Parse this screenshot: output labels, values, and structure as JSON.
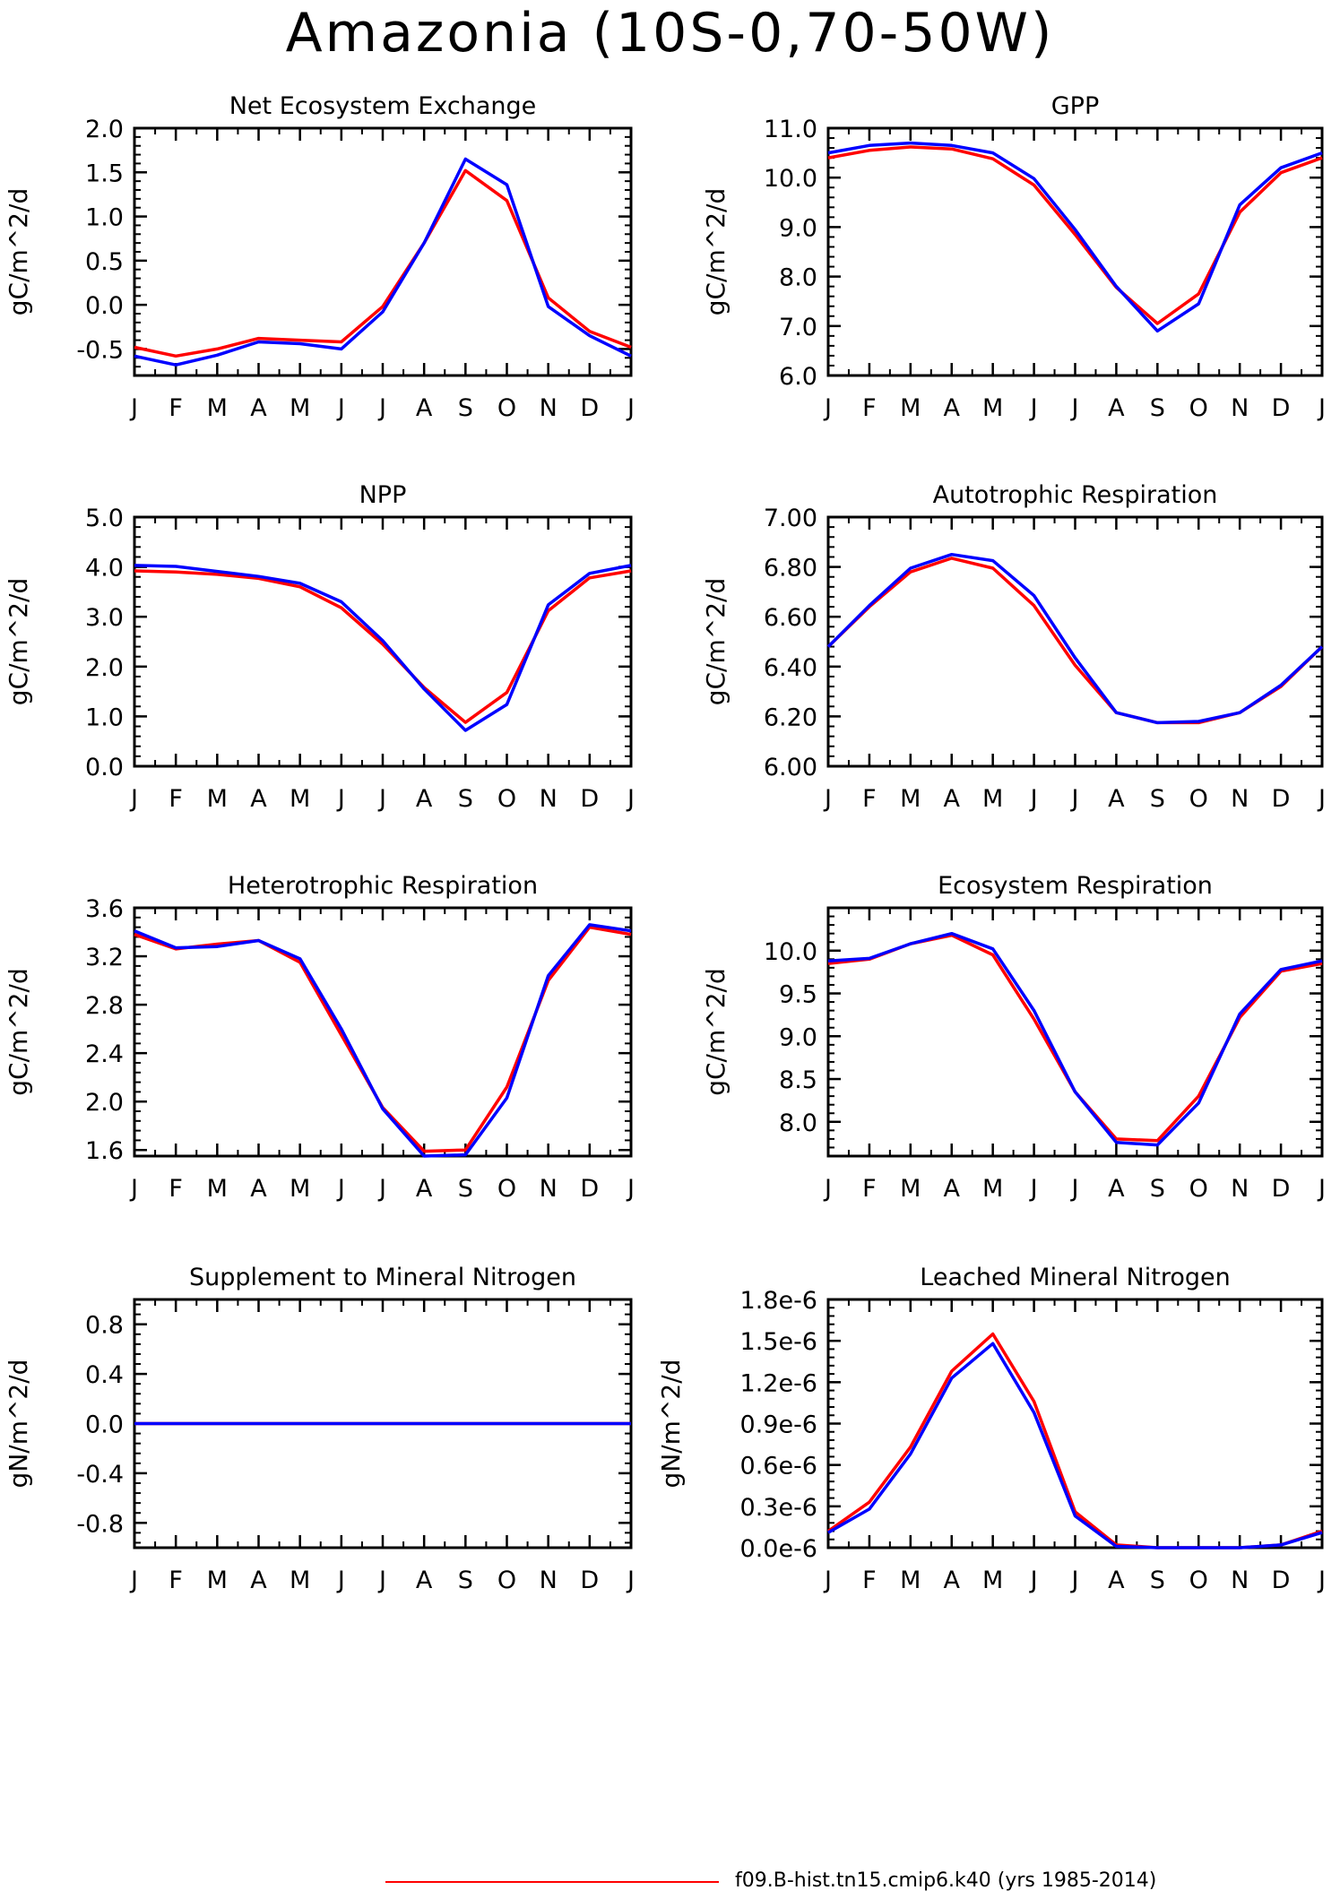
{
  "title": "Amazonia (10S-0,70-50W)",
  "legend": [
    {
      "label": "f09.B-hist.tn15.cmip6.k40 (yrs 1985-2014)",
      "color": "#ff0000"
    }
  ],
  "series_colors": [
    "#ff0000",
    "#0000ff"
  ],
  "chart_data": [
    {
      "type": "line",
      "title": "Net Ecosystem Exchange",
      "ylabel": "gC/m^2/d",
      "categories": [
        "J",
        "F",
        "M",
        "A",
        "M",
        "J",
        "J",
        "A",
        "S",
        "O",
        "N",
        "D",
        "J"
      ],
      "ylim": [
        -0.8,
        2.0
      ],
      "yticks": [
        -0.5,
        0.0,
        0.5,
        1.0,
        1.5,
        2.0
      ],
      "ytick_labels": [
        "-0.5",
        "0.0",
        "0.5",
        "1.0",
        "1.5",
        "2.0"
      ],
      "series": [
        {
          "values": [
            -0.48,
            -0.58,
            -0.5,
            -0.38,
            -0.4,
            -0.42,
            -0.02,
            0.7,
            1.52,
            1.18,
            0.08,
            -0.3,
            -0.48
          ]
        },
        {
          "values": [
            -0.58,
            -0.68,
            -0.57,
            -0.42,
            -0.44,
            -0.5,
            -0.08,
            0.7,
            1.65,
            1.36,
            -0.02,
            -0.35,
            -0.58
          ]
        }
      ]
    },
    {
      "type": "line",
      "title": "GPP",
      "ylabel": "gC/m^2/d",
      "categories": [
        "J",
        "F",
        "M",
        "A",
        "M",
        "J",
        "J",
        "A",
        "S",
        "O",
        "N",
        "D",
        "J"
      ],
      "ylim": [
        6.0,
        11.0
      ],
      "yticks": [
        6.0,
        7.0,
        8.0,
        9.0,
        10.0,
        11.0
      ],
      "ytick_labels": [
        "6.0",
        "7.0",
        "8.0",
        "9.0",
        "10.0",
        "11.0"
      ],
      "series": [
        {
          "values": [
            10.4,
            10.55,
            10.62,
            10.58,
            10.38,
            9.85,
            8.85,
            7.78,
            7.05,
            7.65,
            9.3,
            10.1,
            10.4
          ]
        },
        {
          "values": [
            10.5,
            10.65,
            10.7,
            10.65,
            10.5,
            9.98,
            8.95,
            7.8,
            6.9,
            7.45,
            9.45,
            10.2,
            10.5
          ]
        }
      ]
    },
    {
      "type": "line",
      "title": "NPP",
      "ylabel": "gC/m^2/d",
      "categories": [
        "J",
        "F",
        "M",
        "A",
        "M",
        "J",
        "J",
        "A",
        "S",
        "O",
        "N",
        "D",
        "J"
      ],
      "ylim": [
        0.0,
        5.0
      ],
      "yticks": [
        0.0,
        1.0,
        2.0,
        3.0,
        4.0,
        5.0
      ],
      "ytick_labels": [
        "0.0",
        "1.0",
        "2.0",
        "3.0",
        "4.0",
        "5.0"
      ],
      "series": [
        {
          "values": [
            3.92,
            3.9,
            3.85,
            3.77,
            3.6,
            3.18,
            2.45,
            1.58,
            0.88,
            1.48,
            3.12,
            3.78,
            3.92
          ]
        },
        {
          "values": [
            4.03,
            4.01,
            3.91,
            3.81,
            3.67,
            3.3,
            2.52,
            1.55,
            0.72,
            1.24,
            3.24,
            3.87,
            4.03
          ]
        }
      ]
    },
    {
      "type": "line",
      "title": "Autotrophic Respiration",
      "ylabel": "gC/m^2/d",
      "categories": [
        "J",
        "F",
        "M",
        "A",
        "M",
        "J",
        "J",
        "A",
        "S",
        "O",
        "N",
        "D",
        "J"
      ],
      "ylim": [
        6.0,
        7.0
      ],
      "yticks": [
        6.0,
        6.2,
        6.4,
        6.6,
        6.8,
        7.0
      ],
      "ytick_labels": [
        "6.00",
        "6.20",
        "6.40",
        "6.60",
        "6.80",
        "7.00"
      ],
      "series": [
        {
          "values": [
            6.48,
            6.64,
            6.78,
            6.835,
            6.795,
            6.645,
            6.405,
            6.215,
            6.175,
            6.175,
            6.215,
            6.32,
            6.48
          ]
        },
        {
          "values": [
            6.48,
            6.645,
            6.795,
            6.85,
            6.825,
            6.685,
            6.435,
            6.215,
            6.175,
            6.18,
            6.215,
            6.325,
            6.48
          ]
        }
      ]
    },
    {
      "type": "line",
      "title": "Heterotrophic Respiration",
      "ylabel": "gC/m^2/d",
      "categories": [
        "J",
        "F",
        "M",
        "A",
        "M",
        "J",
        "J",
        "A",
        "S",
        "O",
        "N",
        "D",
        "J"
      ],
      "ylim": [
        1.55,
        3.6
      ],
      "yticks": [
        1.6,
        2.0,
        2.4,
        2.8,
        3.2,
        3.6
      ],
      "ytick_labels": [
        "1.6",
        "2.0",
        "2.4",
        "2.8",
        "3.2",
        "3.6"
      ],
      "series": [
        {
          "values": [
            3.38,
            3.26,
            3.3,
            3.33,
            3.15,
            2.55,
            1.95,
            1.59,
            1.6,
            2.12,
            3.0,
            3.44,
            3.38
          ]
        },
        {
          "values": [
            3.41,
            3.27,
            3.28,
            3.33,
            3.18,
            2.6,
            1.94,
            1.55,
            1.56,
            2.03,
            3.04,
            3.46,
            3.41
          ]
        }
      ]
    },
    {
      "type": "line",
      "title": "Ecosystem Respiration",
      "ylabel": "gC/m^2/d",
      "categories": [
        "J",
        "F",
        "M",
        "A",
        "M",
        "J",
        "J",
        "A",
        "S",
        "O",
        "N",
        "D",
        "J"
      ],
      "ylim": [
        7.6,
        10.5
      ],
      "yticks": [
        8.0,
        8.5,
        9.0,
        9.5,
        10.0
      ],
      "ytick_labels": [
        "8.0",
        "8.5",
        "9.0",
        "9.5",
        "10.0"
      ],
      "series": [
        {
          "values": [
            9.85,
            9.9,
            10.08,
            10.18,
            9.95,
            9.2,
            8.35,
            7.8,
            7.78,
            8.3,
            9.22,
            9.76,
            9.85
          ]
        },
        {
          "values": [
            9.88,
            9.91,
            10.08,
            10.2,
            10.02,
            9.3,
            8.35,
            7.76,
            7.73,
            8.22,
            9.26,
            9.78,
            9.88
          ]
        }
      ]
    },
    {
      "type": "line",
      "title": "Supplement to Mineral Nitrogen",
      "ylabel": "gN/m^2/d",
      "categories": [
        "J",
        "F",
        "M",
        "A",
        "M",
        "J",
        "J",
        "A",
        "S",
        "O",
        "N",
        "D",
        "J"
      ],
      "ylim": [
        -1.0,
        1.0
      ],
      "yticks": [
        -0.8,
        -0.4,
        0.0,
        0.4,
        0.8
      ],
      "ytick_labels": [
        "-0.8",
        "-0.4",
        "0.0",
        "0.4",
        "0.8"
      ],
      "series": [
        {
          "values": [
            0,
            0,
            0,
            0,
            0,
            0,
            0,
            0,
            0,
            0,
            0,
            0,
            0
          ]
        },
        {
          "values": [
            0,
            0,
            0,
            0,
            0,
            0,
            0,
            0,
            0,
            0,
            0,
            0,
            0
          ]
        }
      ]
    },
    {
      "type": "line",
      "title": "Leached Mineral Nitrogen",
      "ylabel": "gN/m^2/d",
      "categories": [
        "J",
        "F",
        "M",
        "A",
        "M",
        "J",
        "J",
        "A",
        "S",
        "O",
        "N",
        "D",
        "J"
      ],
      "ylim": [
        0.0,
        1.8e-06
      ],
      "yticks": [
        0.0,
        3e-07,
        6e-07,
        9e-07,
        1.2e-06,
        1.5e-06,
        1.8e-06
      ],
      "ytick_labels": [
        "0.0e-6",
        "0.3e-6",
        "0.6e-6",
        "0.9e-6",
        "1.2e-6",
        "1.5e-6",
        "1.8e-6"
      ],
      "series": [
        {
          "values": [
            1.2e-07,
            3.3e-07,
            7.3e-07,
            1.28e-06,
            1.55e-06,
            1.06e-06,
            2.6e-07,
            2e-08,
            0.0,
            0.0,
            0.0,
            2e-08,
            1.2e-07
          ]
        },
        {
          "values": [
            1.1e-07,
            2.8e-07,
            6.8e-07,
            1.23e-06,
            1.48e-06,
            9.8e-07,
            2.3e-07,
            1e-08,
            0.0,
            0.0,
            0.0,
            2e-08,
            1.1e-07
          ]
        }
      ]
    }
  ]
}
